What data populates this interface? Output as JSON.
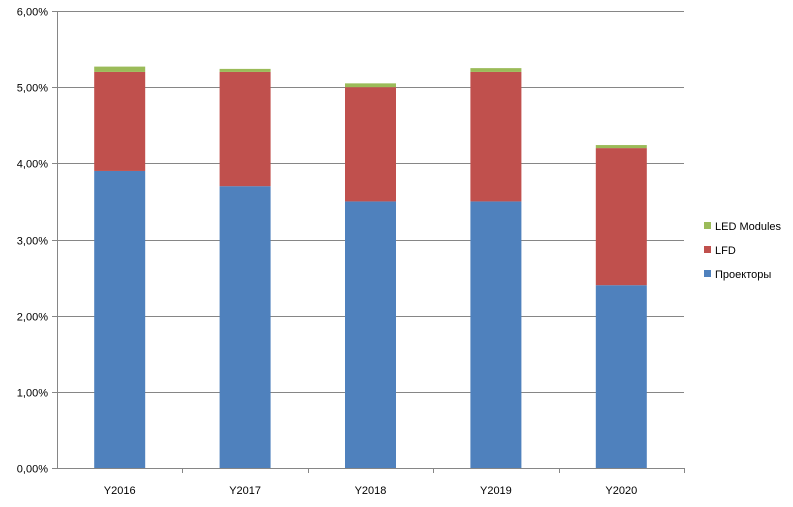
{
  "chart_data": {
    "type": "bar",
    "stacked": true,
    "categories": [
      "Y2016",
      "Y2017",
      "Y2018",
      "Y2019",
      "Y2020"
    ],
    "series": [
      {
        "name": "Проекторы",
        "color": "#4F81BD",
        "values": [
          3.9,
          3.7,
          3.5,
          3.5,
          2.4
        ]
      },
      {
        "name": "LFD",
        "color": "#C0504D",
        "values": [
          1.3,
          1.5,
          1.5,
          1.7,
          1.8
        ]
      },
      {
        "name": "LED Modules",
        "color": "#9BBB59",
        "values": [
          0.07,
          0.04,
          0.05,
          0.05,
          0.04
        ]
      }
    ],
    "ylim": [
      0,
      6
    ],
    "yticks": [
      0,
      1,
      2,
      3,
      4,
      5,
      6
    ],
    "ytick_labels": [
      "0,00%",
      "1,00%",
      "2,00%",
      "3,00%",
      "4,00%",
      "5,00%",
      "6,00%"
    ],
    "ylabel": "",
    "xlabel": "",
    "title": "",
    "grid": true,
    "legend_position": "right",
    "legend_order": [
      "LED Modules",
      "LFD",
      "Проекторы"
    ]
  }
}
